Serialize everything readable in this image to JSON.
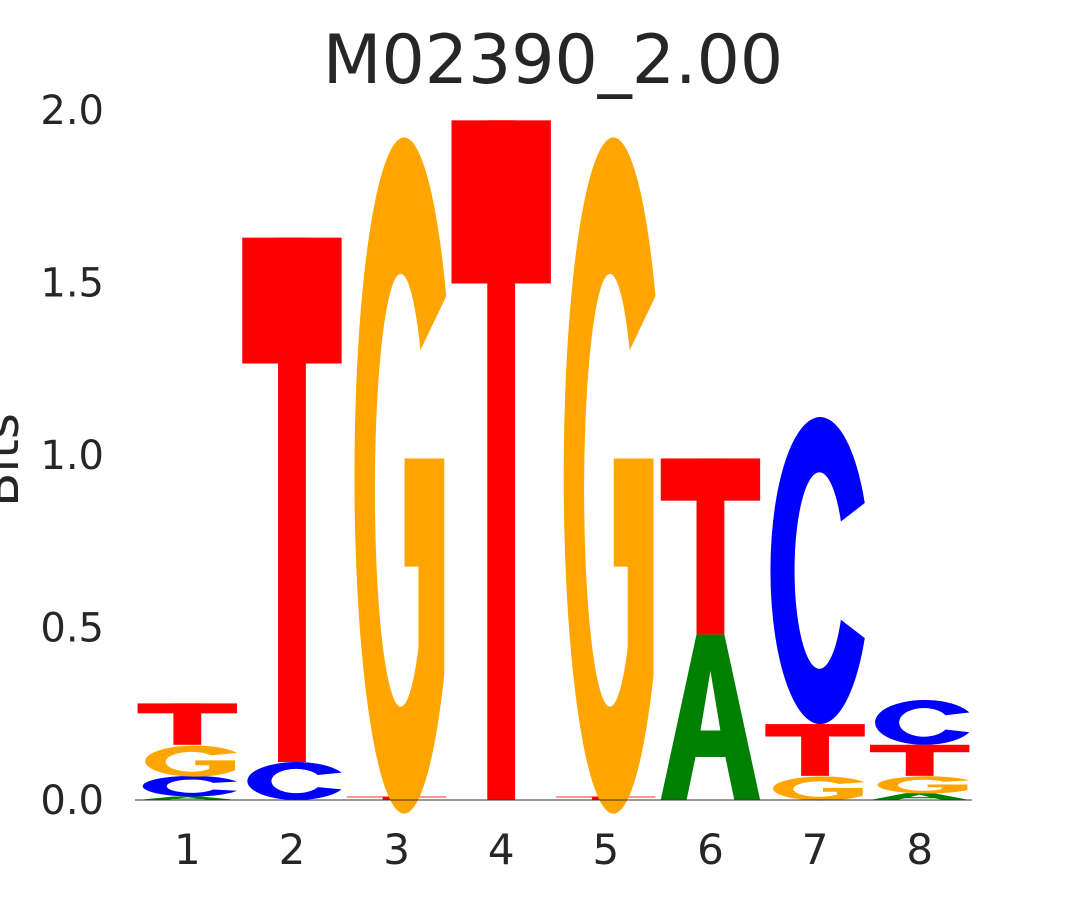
{
  "chart_data": {
    "type": "sequence-logo",
    "title": "M02390_2.00",
    "ylabel": "Bits",
    "xlabel": "",
    "ylim": [
      0,
      2.0
    ],
    "yticks": [
      "0.0",
      "0.5",
      "1.0",
      "1.5",
      "2.0"
    ],
    "ytick_values": [
      0,
      0.5,
      1.0,
      1.5,
      2.0
    ],
    "positions": [
      "1",
      "2",
      "3",
      "4",
      "5",
      "6",
      "7",
      "8"
    ],
    "letter_colors": {
      "A": "#008000",
      "C": "#0000ff",
      "G": "#ffa500",
      "T": "#ff0000"
    },
    "grid": false,
    "stacks": [
      [
        {
          "letter": "A",
          "bits": 0.01
        },
        {
          "letter": "C",
          "bits": 0.06
        },
        {
          "letter": "G",
          "bits": 0.09
        },
        {
          "letter": "T",
          "bits": 0.12
        }
      ],
      [
        {
          "letter": "C",
          "bits": 0.11
        },
        {
          "letter": "T",
          "bits": 1.52
        }
      ],
      [
        {
          "letter": "T",
          "bits": 0.01
        },
        {
          "letter": "G",
          "bits": 1.96
        }
      ],
      [
        {
          "letter": "T",
          "bits": 1.97
        }
      ],
      [
        {
          "letter": "T",
          "bits": 0.01
        },
        {
          "letter": "G",
          "bits": 1.96
        }
      ],
      [
        {
          "letter": "A",
          "bits": 0.48
        },
        {
          "letter": "T",
          "bits": 0.51
        }
      ],
      [
        {
          "letter": "G",
          "bits": 0.07
        },
        {
          "letter": "T",
          "bits": 0.15
        },
        {
          "letter": "C",
          "bits": 0.89
        }
      ],
      [
        {
          "letter": "A",
          "bits": 0.02
        },
        {
          "letter": "G",
          "bits": 0.05
        },
        {
          "letter": "T",
          "bits": 0.09
        },
        {
          "letter": "C",
          "bits": 0.13
        }
      ]
    ]
  }
}
